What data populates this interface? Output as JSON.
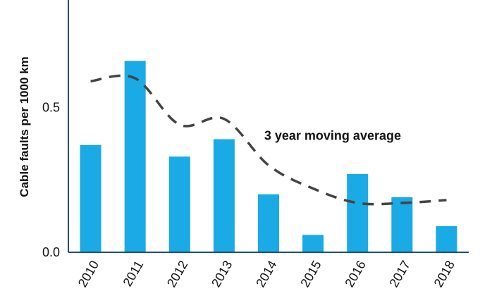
{
  "chart_data": {
    "type": "bar",
    "ylabel": "Cable faults per 1000 km",
    "ylim": [
      0,
      0.87
    ],
    "yticks": [
      "0.0",
      "0.5"
    ],
    "yticks_values": [
      0,
      0.5
    ],
    "grid": false,
    "categories": [
      "2010",
      "2011",
      "2012",
      "2013",
      "2014",
      "2015",
      "2016",
      "2017",
      "2018"
    ],
    "series": [
      {
        "type": "bar",
        "color": "#1aaae6",
        "values": [
          0.37,
          0.66,
          0.33,
          0.39,
          0.2,
          0.06,
          0.27,
          0.19,
          0.09
        ]
      },
      {
        "type": "line",
        "style": "dashed",
        "color": "#444444",
        "values": [
          0.59,
          0.6,
          0.44,
          0.46,
          0.3,
          0.22,
          0.17,
          0.17,
          0.18
        ]
      }
    ],
    "annotations": [
      {
        "text": "3 year moving average",
        "near_category": "2013"
      }
    ]
  }
}
